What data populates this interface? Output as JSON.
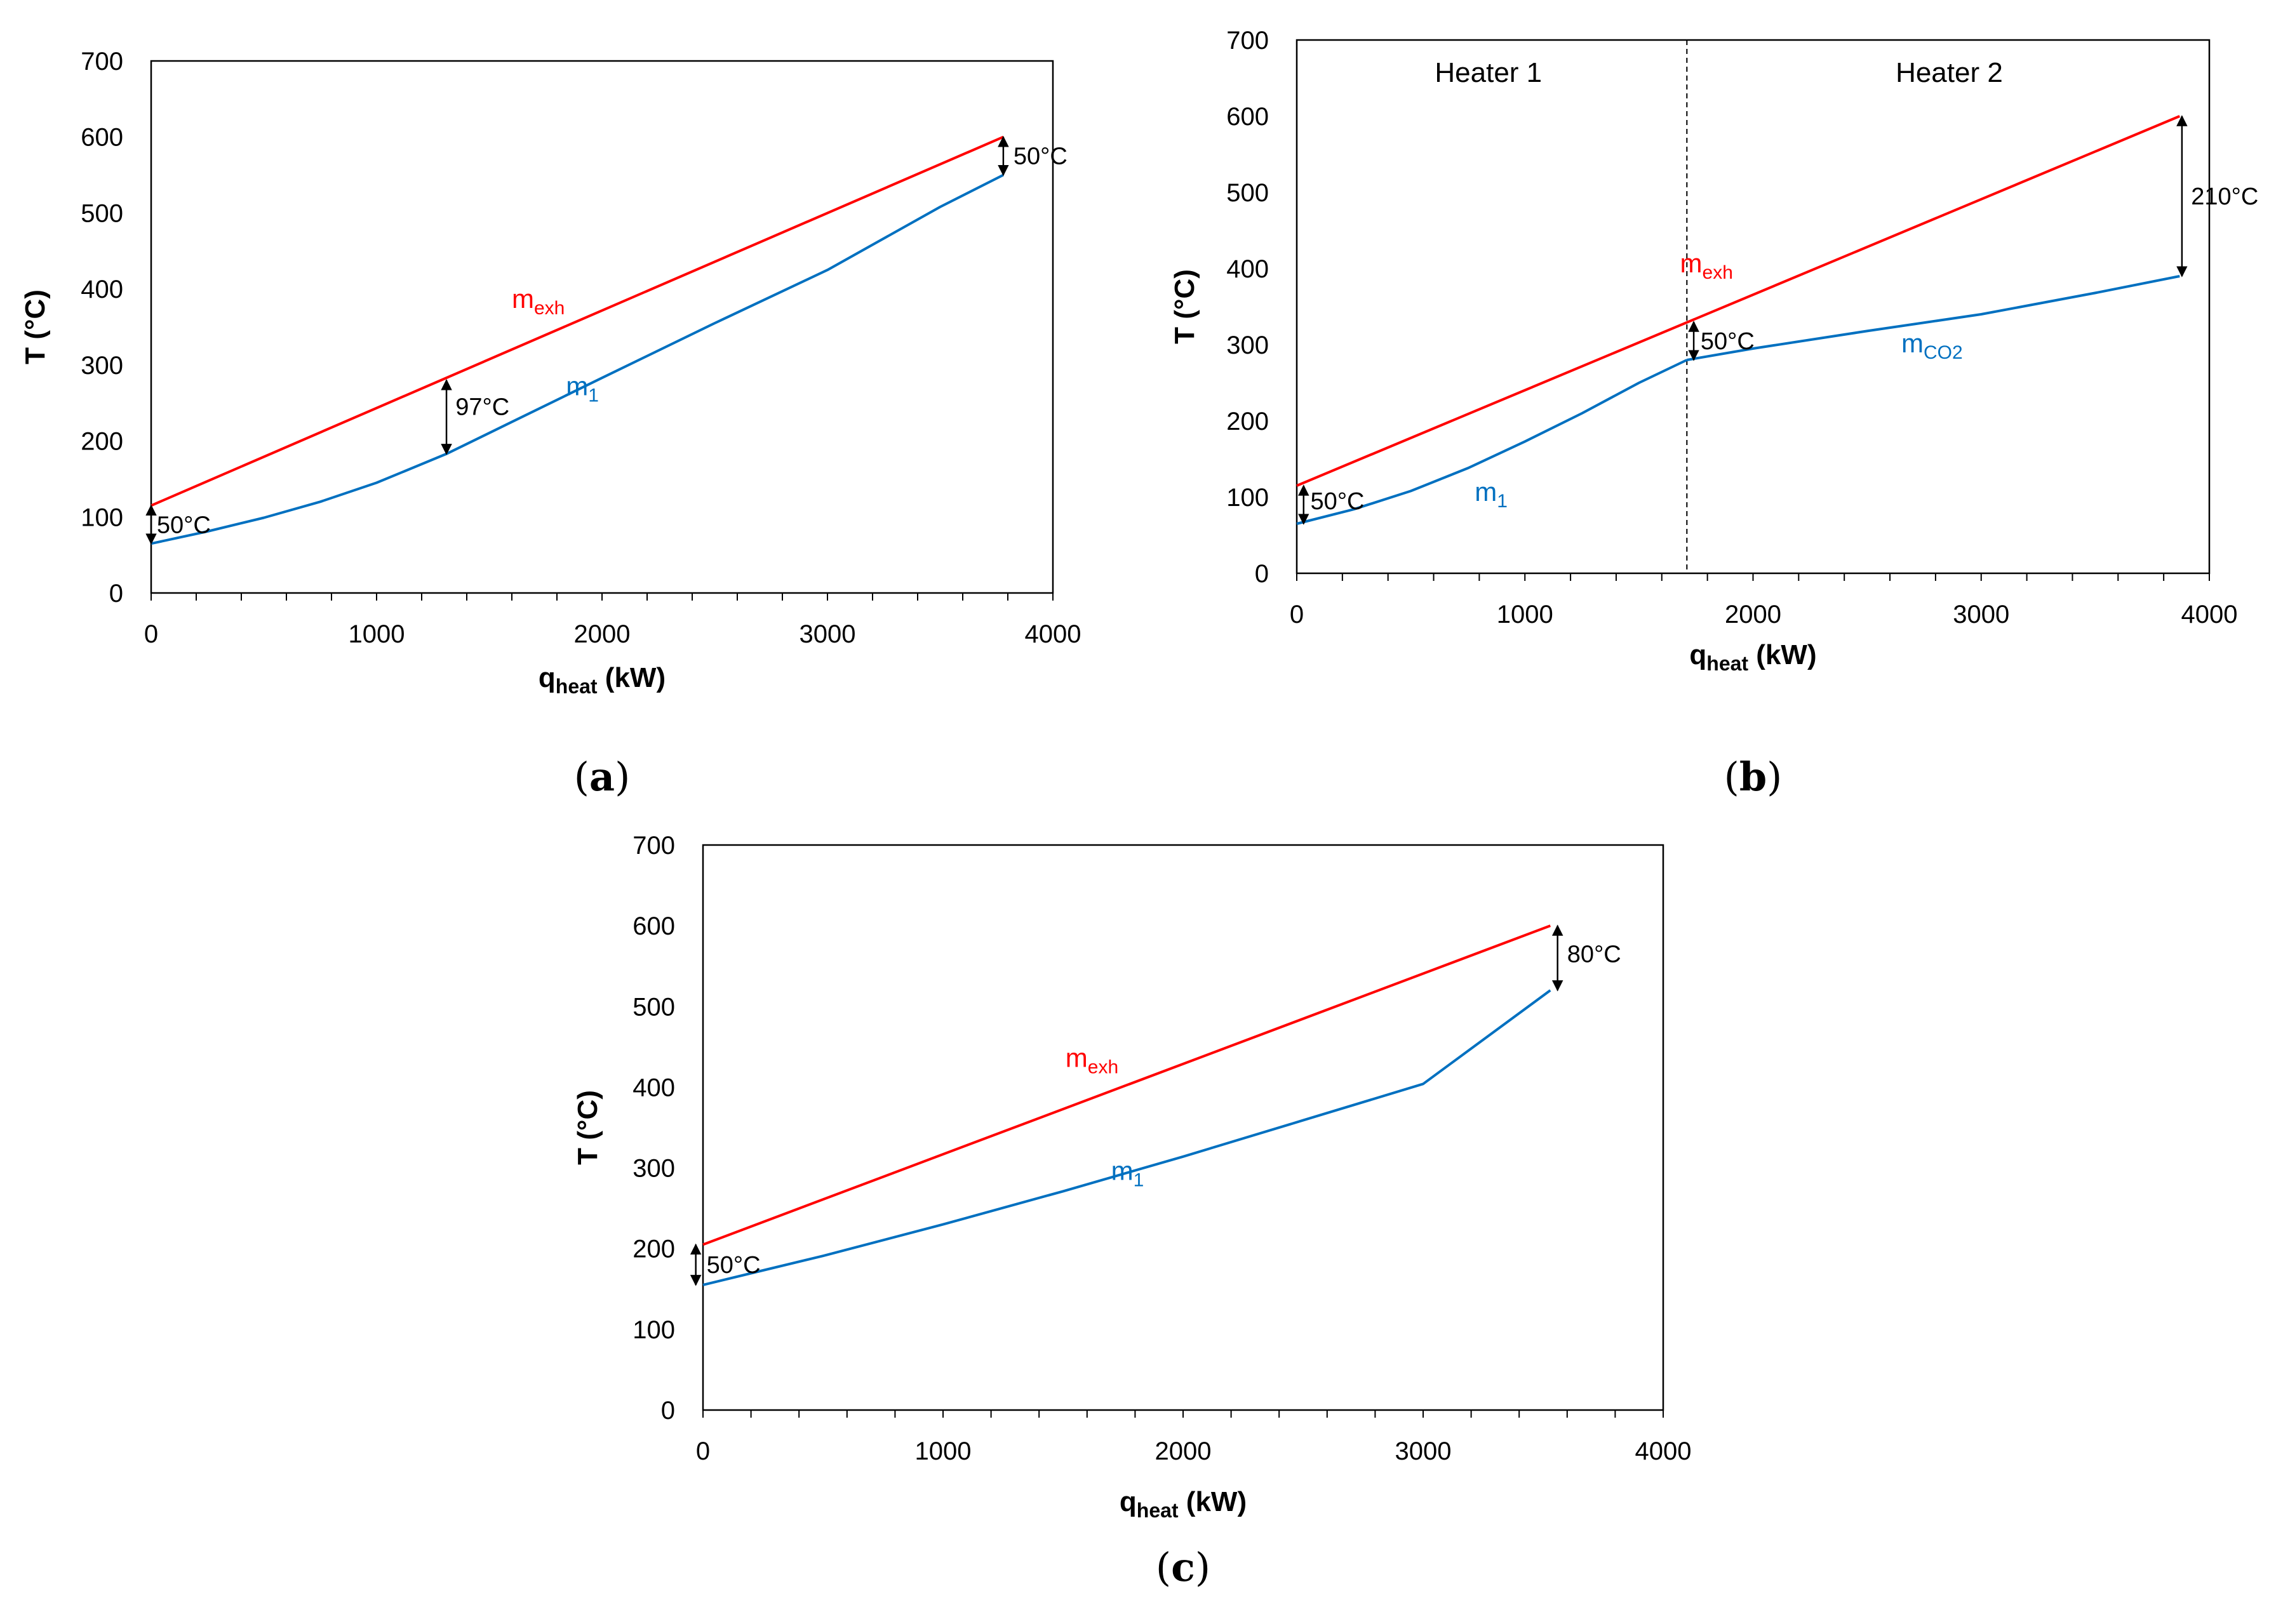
{
  "colors": {
    "exhaust": "#ff0000",
    "working": "#0070c0",
    "frame": "#000000"
  },
  "chart_data": [
    {
      "id": "a",
      "type": "line",
      "panel_label": "a",
      "xlabel": "q",
      "xlabel_sub": "heat",
      "xlabel_unit": "(kW)",
      "ylabel": "T (°C)",
      "xlim": [
        0,
        4000
      ],
      "ylim": [
        0,
        700
      ],
      "xticks": [
        "0",
        "1000",
        "2000",
        "3000",
        "4000"
      ],
      "yticks": [
        "0",
        "100",
        "200",
        "300",
        "400",
        "500",
        "600",
        "700"
      ],
      "series": [
        {
          "name": "m",
          "sub": "exh",
          "color_key": "exhaust",
          "x": [
            0,
            3780
          ],
          "y": [
            115,
            600
          ],
          "label_at": [
            1600,
            375
          ]
        },
        {
          "name": "m",
          "sub": "1",
          "color_key": "working",
          "x": [
            0,
            250,
            500,
            750,
            1000,
            1310,
            1600,
            2000,
            2500,
            3000,
            3500,
            3780
          ],
          "y": [
            65,
            81,
            99,
            120,
            145,
            183,
            225,
            283,
            355,
            425,
            508,
            550
          ],
          "label_at": [
            1840,
            260
          ]
        }
      ],
      "annotations": [
        {
          "text": "50°C",
          "x": 0,
          "y_from": 65,
          "y_to": 115,
          "label_at": [
            25,
            90
          ]
        },
        {
          "text": "97°C",
          "x": 1310,
          "y_from": 183,
          "y_to": 280,
          "label_at": [
            1350,
            245
          ]
        },
        {
          "text": "50°C",
          "x": 3780,
          "y_from": 550,
          "y_to": 600,
          "label_at": [
            3825,
            575
          ]
        }
      ]
    },
    {
      "id": "b",
      "type": "line",
      "panel_label": "b",
      "xlabel": "q",
      "xlabel_sub": "heat",
      "xlabel_unit": "(kW)",
      "ylabel": "T (°C)",
      "xlim": [
        0,
        4000
      ],
      "ylim": [
        0,
        700
      ],
      "xticks": [
        "0",
        "1000",
        "2000",
        "3000",
        "4000"
      ],
      "yticks": [
        "0",
        "100",
        "200",
        "300",
        "400",
        "500",
        "600",
        "700"
      ],
      "divider_x": 1710,
      "regions": [
        {
          "text": "Heater 1",
          "at": [
            840,
            645
          ]
        },
        {
          "text": "Heater 2",
          "at": [
            2860,
            645
          ]
        }
      ],
      "series": [
        {
          "name": "m",
          "sub": "exh",
          "color_key": "exhaust",
          "x": [
            0,
            3870
          ],
          "y": [
            115,
            600
          ],
          "label_at": [
            1680,
            395
          ]
        },
        {
          "name": "m",
          "sub": "1",
          "color_key": "working",
          "x": [
            0,
            250,
            500,
            750,
            1000,
            1250,
            1500,
            1710
          ],
          "y": [
            65,
            84,
            108,
            138,
            173,
            210,
            250,
            280
          ],
          "label_at": [
            780,
            95
          ]
        },
        {
          "name": "m",
          "sub": "CO2",
          "color_key": "working",
          "x": [
            1710,
            2000,
            2500,
            3000,
            3500,
            3870
          ],
          "y": [
            280,
            295,
            318,
            340,
            368,
            390
          ],
          "label_at": [
            2650,
            290
          ]
        }
      ],
      "annotations": [
        {
          "text": "50°C",
          "x": 30,
          "y_from": 65,
          "y_to": 115,
          "label_at": [
            60,
            95
          ]
        },
        {
          "text": "50°C",
          "x": 1740,
          "y_from": 280,
          "y_to": 330,
          "label_at": [
            1770,
            305
          ]
        },
        {
          "text": "210°C",
          "x": 3880,
          "y_from": 390,
          "y_to": 600,
          "label_at": [
            3920,
            495
          ]
        }
      ]
    },
    {
      "id": "c",
      "type": "line",
      "panel_label": "c",
      "xlabel": "q",
      "xlabel_sub": "heat",
      "xlabel_unit": "(kW)",
      "ylabel": "T (°C)",
      "xlim": [
        0,
        4000
      ],
      "ylim": [
        0,
        700
      ],
      "xticks": [
        "0",
        "1000",
        "2000",
        "3000",
        "4000"
      ],
      "yticks": [
        "0",
        "100",
        "200",
        "300",
        "400",
        "500",
        "600",
        "700"
      ],
      "series": [
        {
          "name": "m",
          "sub": "exh",
          "color_key": "exhaust",
          "x": [
            0,
            3530
          ],
          "y": [
            205,
            600
          ],
          "label_at": [
            1510,
            425
          ]
        },
        {
          "name": "m",
          "sub": "1",
          "color_key": "working",
          "x": [
            0,
            250,
            500,
            1000,
            1500,
            2000,
            2500,
            3000,
            3530
          ],
          "y": [
            155,
            173,
            191,
            230,
            271,
            314,
            359,
            404,
            520
          ],
          "label_at": [
            1700,
            285
          ]
        }
      ],
      "annotations": [
        {
          "text": "50°C",
          "x": -30,
          "y_from": 155,
          "y_to": 205,
          "label_at": [
            15,
            180
          ]
        },
        {
          "text": "80°C",
          "x": 3560,
          "y_from": 520,
          "y_to": 600,
          "label_at": [
            3600,
            565
          ]
        }
      ]
    }
  ]
}
